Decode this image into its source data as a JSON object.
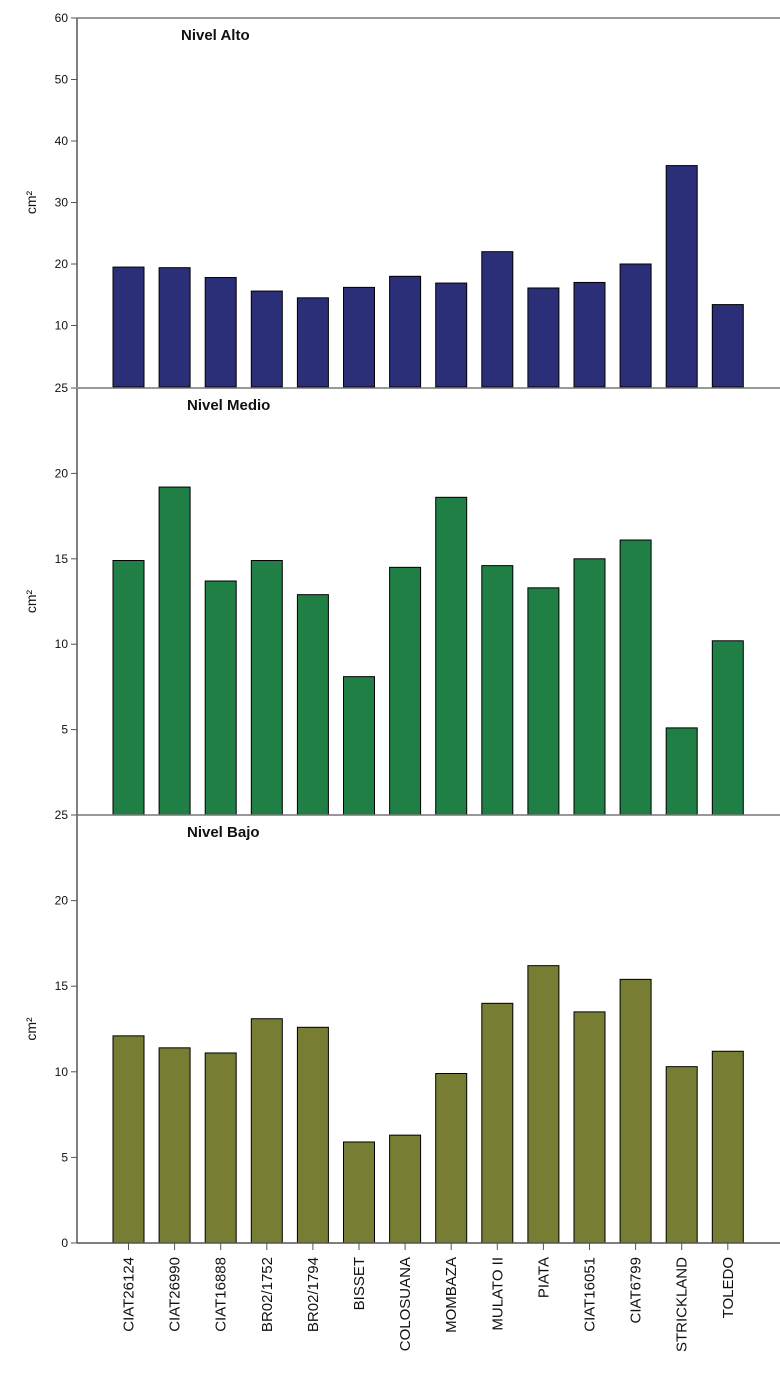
{
  "chart_data": [
    {
      "type": "bar",
      "title": "Nivel Alto",
      "ylabel": "cm²",
      "ylim": [
        0,
        60
      ],
      "yticks": [
        "10",
        "20",
        "30",
        "40",
        "50",
        "60"
      ],
      "color": "#2b2f78",
      "categories": [
        "CIAT26124",
        "CIAT26990",
        "CIAT16888",
        "BR02/1752",
        "BR02/1794",
        "BISSET",
        "COLOSUANA",
        "MOMBAZA",
        "MULATO II",
        "PIATA",
        "CIAT16051",
        "CIAT6799",
        "STRICKLAND",
        "TOLEDO"
      ],
      "values": [
        19.5,
        19.4,
        17.8,
        15.6,
        14.5,
        16.2,
        18.0,
        16.9,
        22.0,
        16.1,
        17.0,
        20.0,
        36.0,
        13.4
      ]
    },
    {
      "type": "bar",
      "title": "Nivel Medio",
      "ylabel": "cm²",
      "ylim": [
        0,
        25
      ],
      "yticks": [
        "25",
        "5",
        "10",
        "15",
        "20"
      ],
      "color": "#1f7f45",
      "categories": [
        "CIAT26124",
        "CIAT26990",
        "CIAT16888",
        "BR02/1752",
        "BR02/1794",
        "BISSET",
        "COLOSUANA",
        "MOMBAZA",
        "MULATO II",
        "PIATA",
        "CIAT16051",
        "CIAT6799",
        "STRICKLAND",
        "TOLEDO"
      ],
      "values": [
        14.9,
        19.2,
        13.7,
        14.9,
        12.9,
        8.1,
        14.5,
        18.6,
        14.6,
        13.3,
        15.0,
        16.1,
        5.1,
        10.2
      ]
    },
    {
      "type": "bar",
      "title": "Nivel Bajo",
      "ylabel": "cm²",
      "ylim": [
        0,
        25
      ],
      "yticks": [
        "25",
        "0",
        "5",
        "10",
        "15",
        "20"
      ],
      "color": "#777d32",
      "categories": [
        "CIAT26124",
        "CIAT26990",
        "CIAT16888",
        "BR02/1752",
        "BR02/1794",
        "BISSET",
        "COLOSUANA",
        "MOMBAZA",
        "MULATO II",
        "PIATA",
        "CIAT16051",
        "CIAT6799",
        "STRICKLAND",
        "TOLEDO"
      ],
      "values": [
        12.1,
        11.4,
        11.1,
        13.1,
        12.6,
        5.9,
        6.3,
        9.9,
        14.0,
        16.2,
        13.5,
        15.4,
        10.3,
        11.2
      ]
    }
  ]
}
